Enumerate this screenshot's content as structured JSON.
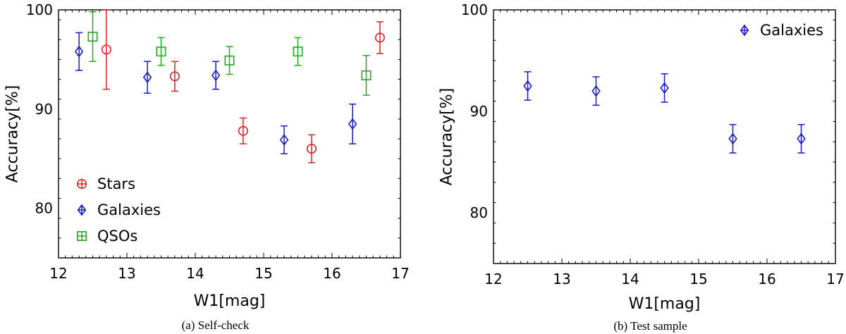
{
  "chart_data": [
    {
      "type": "scatter",
      "caption": "(a) Self-check",
      "xlabel": "W1[mag]",
      "ylabel": "Accuracy[%]",
      "xlim": [
        12,
        17
      ],
      "ylim": [
        75,
        100
      ],
      "x_ticks": [
        "12",
        "13",
        "14",
        "15",
        "16",
        "17"
      ],
      "y_ticks": [
        "80",
        "90",
        "100"
      ],
      "legend_position": "lower-left",
      "series": [
        {
          "name": "Stars",
          "color": "#dd2222",
          "marker": "circle",
          "points": [
            {
              "x": 12.7,
              "y": 96.0,
              "err_low": 4.0,
              "err_high": 4.0
            },
            {
              "x": 13.7,
              "y": 93.3,
              "err_low": 1.5,
              "err_high": 1.5
            },
            {
              "x": 14.7,
              "y": 87.8,
              "err_low": 1.3,
              "err_high": 1.3
            },
            {
              "x": 15.7,
              "y": 86.0,
              "err_low": 1.4,
              "err_high": 1.4
            },
            {
              "x": 16.7,
              "y": 97.2,
              "err_low": 1.6,
              "err_high": 1.6
            }
          ]
        },
        {
          "name": "Galaxies",
          "color": "#1a1acc",
          "marker": "diamond",
          "points": [
            {
              "x": 12.3,
              "y": 95.8,
              "err_low": 1.9,
              "err_high": 1.9
            },
            {
              "x": 13.3,
              "y": 93.2,
              "err_low": 1.6,
              "err_high": 1.6
            },
            {
              "x": 14.3,
              "y": 93.4,
              "err_low": 1.4,
              "err_high": 1.4
            },
            {
              "x": 15.3,
              "y": 86.9,
              "err_low": 1.4,
              "err_high": 1.4
            },
            {
              "x": 16.3,
              "y": 88.5,
              "err_low": 2.0,
              "err_high": 2.0
            }
          ]
        },
        {
          "name": "QSOs",
          "color": "#22aa22",
          "marker": "square",
          "points": [
            {
              "x": 12.5,
              "y": 97.3,
              "err_low": 2.5,
              "err_high": 2.5
            },
            {
              "x": 13.5,
              "y": 95.8,
              "err_low": 1.4,
              "err_high": 1.4
            },
            {
              "x": 14.5,
              "y": 94.9,
              "err_low": 1.4,
              "err_high": 1.4
            },
            {
              "x": 15.5,
              "y": 95.8,
              "err_low": 1.4,
              "err_high": 1.4
            },
            {
              "x": 16.5,
              "y": 93.4,
              "err_low": 2.0,
              "err_high": 2.0
            }
          ]
        }
      ]
    },
    {
      "type": "scatter",
      "caption": "(b) Test sample",
      "xlabel": "W1[mag]",
      "ylabel": "Accuracy[%]",
      "xlim": [
        12,
        17
      ],
      "ylim": [
        75,
        100
      ],
      "x_ticks": [
        "12",
        "13",
        "14",
        "15",
        "16",
        "17"
      ],
      "y_ticks": [
        "80",
        "90",
        "100"
      ],
      "legend_position": "top-right",
      "series": [
        {
          "name": "Galaxies",
          "color": "#1a1acc",
          "marker": "diamond",
          "points": [
            {
              "x": 12.5,
              "y": 92.5,
              "err_low": 1.4,
              "err_high": 1.4
            },
            {
              "x": 13.5,
              "y": 92.0,
              "err_low": 1.4,
              "err_high": 1.4
            },
            {
              "x": 14.5,
              "y": 92.3,
              "err_low": 1.4,
              "err_high": 1.4
            },
            {
              "x": 15.5,
              "y": 87.3,
              "err_low": 1.4,
              "err_high": 1.4
            },
            {
              "x": 16.5,
              "y": 87.3,
              "err_low": 1.4,
              "err_high": 1.4
            }
          ]
        }
      ]
    }
  ]
}
